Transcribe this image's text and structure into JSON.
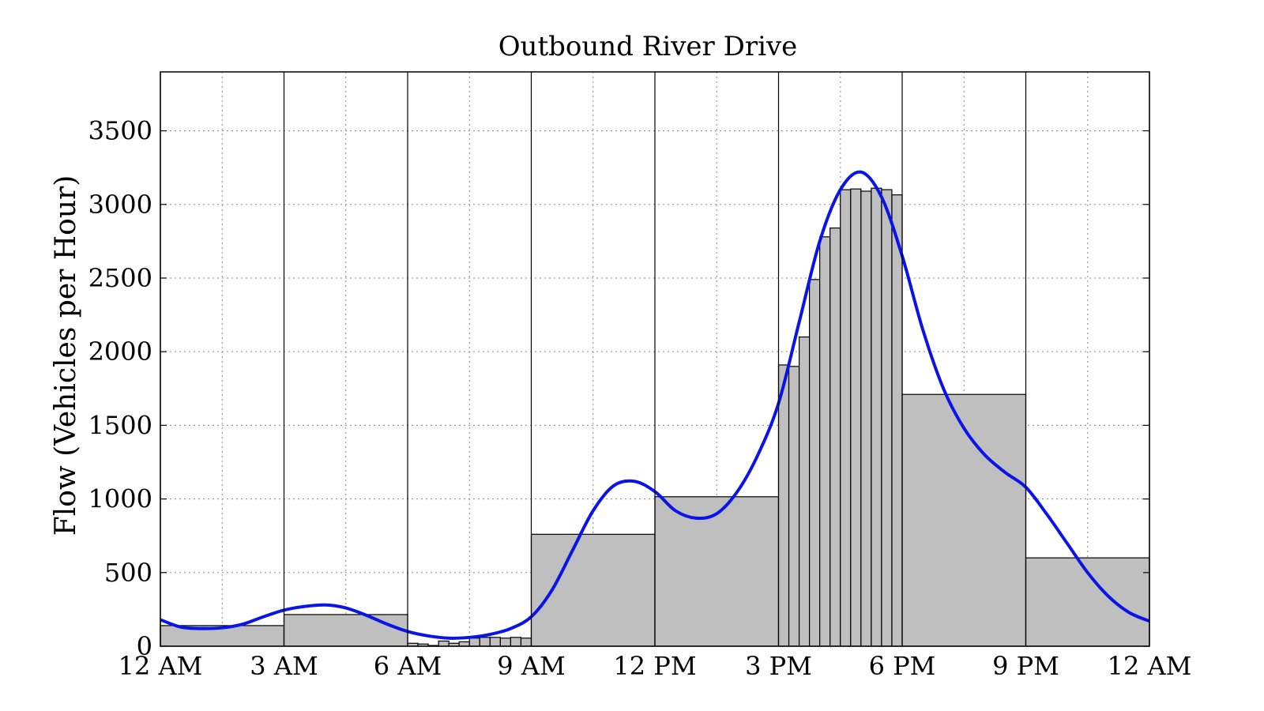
{
  "chart_data": {
    "type": "bar",
    "title": "Outbound River Drive",
    "xlabel": "",
    "ylabel": "Flow (Vehicles per Hour)",
    "ylim": [
      0,
      3900
    ],
    "xlim_hours": [
      0,
      24
    ],
    "yticks": [
      0,
      500,
      1000,
      1500,
      2000,
      2500,
      3000,
      3500
    ],
    "ytick_labels": [
      "0",
      "500",
      "1000",
      "1500",
      "2000",
      "2500",
      "3000",
      "3500"
    ],
    "xticks_hours": [
      0,
      3,
      6,
      9,
      12,
      15,
      18,
      21,
      24
    ],
    "xtick_labels": [
      "12 AM",
      "3 AM",
      "6 AM",
      "9 AM",
      "12 PM",
      "3 PM",
      "6 PM",
      "9 PM",
      "12 AM"
    ],
    "grid": true,
    "colors": {
      "bars": "#bfbfbf",
      "bar_edge": "#000000",
      "curve": "#0a14e8"
    },
    "bars": [
      {
        "start": 0,
        "end": 3,
        "value": 140
      },
      {
        "start": 3,
        "end": 6,
        "value": 215
      },
      {
        "start": 6,
        "end": 6.25,
        "value": 20
      },
      {
        "start": 6.25,
        "end": 6.5,
        "value": 15
      },
      {
        "start": 6.5,
        "end": 6.75,
        "value": 5
      },
      {
        "start": 6.75,
        "end": 7,
        "value": 35
      },
      {
        "start": 7,
        "end": 7.25,
        "value": 20
      },
      {
        "start": 7.25,
        "end": 7.5,
        "value": 30
      },
      {
        "start": 7.5,
        "end": 7.75,
        "value": 55
      },
      {
        "start": 7.75,
        "end": 8,
        "value": 60
      },
      {
        "start": 8,
        "end": 8.25,
        "value": 60
      },
      {
        "start": 8.25,
        "end": 8.5,
        "value": 55
      },
      {
        "start": 8.5,
        "end": 8.75,
        "value": 60
      },
      {
        "start": 8.75,
        "end": 9,
        "value": 55
      },
      {
        "start": 9,
        "end": 12,
        "value": 760
      },
      {
        "start": 12,
        "end": 15,
        "value": 1015
      },
      {
        "start": 15,
        "end": 15.25,
        "value": 1910
      },
      {
        "start": 15.25,
        "end": 15.5,
        "value": 1900
      },
      {
        "start": 15.5,
        "end": 15.75,
        "value": 2100
      },
      {
        "start": 15.75,
        "end": 16,
        "value": 2490
      },
      {
        "start": 16,
        "end": 16.25,
        "value": 2780
      },
      {
        "start": 16.25,
        "end": 16.5,
        "value": 2840
      },
      {
        "start": 16.5,
        "end": 16.75,
        "value": 3100
      },
      {
        "start": 16.75,
        "end": 17,
        "value": 3105
      },
      {
        "start": 17,
        "end": 17.25,
        "value": 3090
      },
      {
        "start": 17.25,
        "end": 17.5,
        "value": 3110
      },
      {
        "start": 17.5,
        "end": 17.75,
        "value": 3100
      },
      {
        "start": 17.75,
        "end": 18,
        "value": 3065
      },
      {
        "start": 18,
        "end": 21,
        "value": 1710
      },
      {
        "start": 21,
        "end": 24,
        "value": 600
      }
    ],
    "curve": {
      "x": [
        0,
        0.5,
        1,
        1.5,
        2,
        2.5,
        3,
        3.5,
        4,
        4.5,
        5,
        5.5,
        6,
        6.5,
        7,
        7.5,
        8,
        8.5,
        9,
        9.5,
        10,
        10.5,
        11,
        11.5,
        12,
        12.5,
        13,
        13.5,
        14,
        14.5,
        15,
        15.5,
        16,
        16.5,
        17,
        17.5,
        18,
        18.5,
        19,
        19.5,
        20,
        20.5,
        21,
        21.5,
        22,
        22.5,
        23,
        23.5,
        24
      ],
      "y": [
        180,
        130,
        120,
        125,
        150,
        200,
        245,
        270,
        280,
        260,
        210,
        150,
        100,
        70,
        55,
        60,
        80,
        120,
        200,
        380,
        650,
        920,
        1090,
        1120,
        1050,
        920,
        870,
        900,
        1050,
        1300,
        1650,
        2200,
        2750,
        3100,
        3220,
        3050,
        2650,
        2150,
        1750,
        1480,
        1300,
        1180,
        1080,
        900,
        700,
        500,
        340,
        230,
        170
      ]
    }
  }
}
